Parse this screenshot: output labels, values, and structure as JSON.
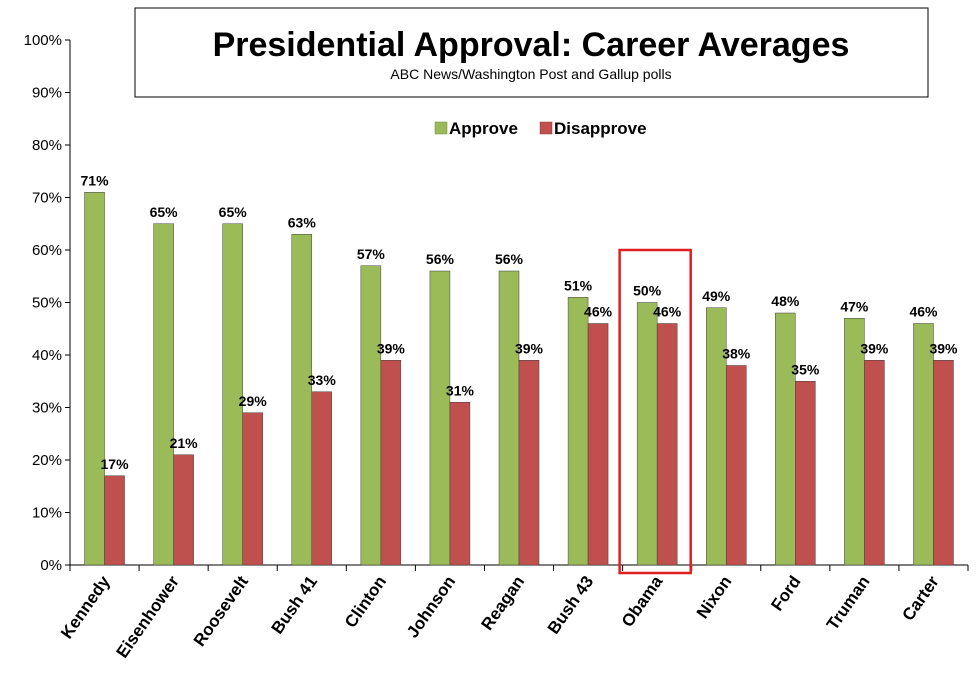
{
  "chart_data": {
    "type": "bar",
    "title": "Presidential Approval: Career Averages",
    "subtitle": "ABC News/Washington  Post and Gallup polls",
    "categories": [
      "Kennedy",
      "Eisenhower",
      "Roosevelt",
      "Bush 41",
      "Clinton",
      "Johnson",
      "Reagan",
      "Bush 43",
      "Obama",
      "Nixon",
      "Ford",
      "Truman",
      "Carter"
    ],
    "series": [
      {
        "name": "Approve",
        "color": "#9bbb59",
        "values": [
          71,
          65,
          65,
          63,
          57,
          56,
          56,
          51,
          50,
          49,
          48,
          47,
          46
        ],
        "labels": [
          "71%",
          "65%",
          "65%",
          "63%",
          "57%",
          "56%",
          "56%",
          "51%",
          "50%",
          "49%",
          "48%",
          "47%",
          "46%"
        ]
      },
      {
        "name": "Disapprove",
        "color": "#c0504d",
        "values": [
          17,
          21,
          29,
          33,
          39,
          31,
          39,
          46,
          46,
          38,
          35,
          39,
          39
        ],
        "labels": [
          "17%",
          "21%",
          "29%",
          "33%",
          "39%",
          "31%",
          "39%",
          "46%",
          "46%",
          "38%",
          "35%",
          "39%",
          "39%"
        ]
      }
    ],
    "ylim": [
      0,
      100
    ],
    "yticks": [
      0,
      10,
      20,
      30,
      40,
      50,
      60,
      70,
      80,
      90,
      100
    ],
    "ytick_labels": [
      "0%",
      "10%",
      "20%",
      "30%",
      "40%",
      "50%",
      "60%",
      "70%",
      "80%",
      "90%",
      "100%"
    ],
    "grid": false,
    "legend_position": "top-center",
    "highlight": {
      "category": "Obama",
      "color": "#e02020"
    },
    "xlabel": "",
    "ylabel": ""
  }
}
